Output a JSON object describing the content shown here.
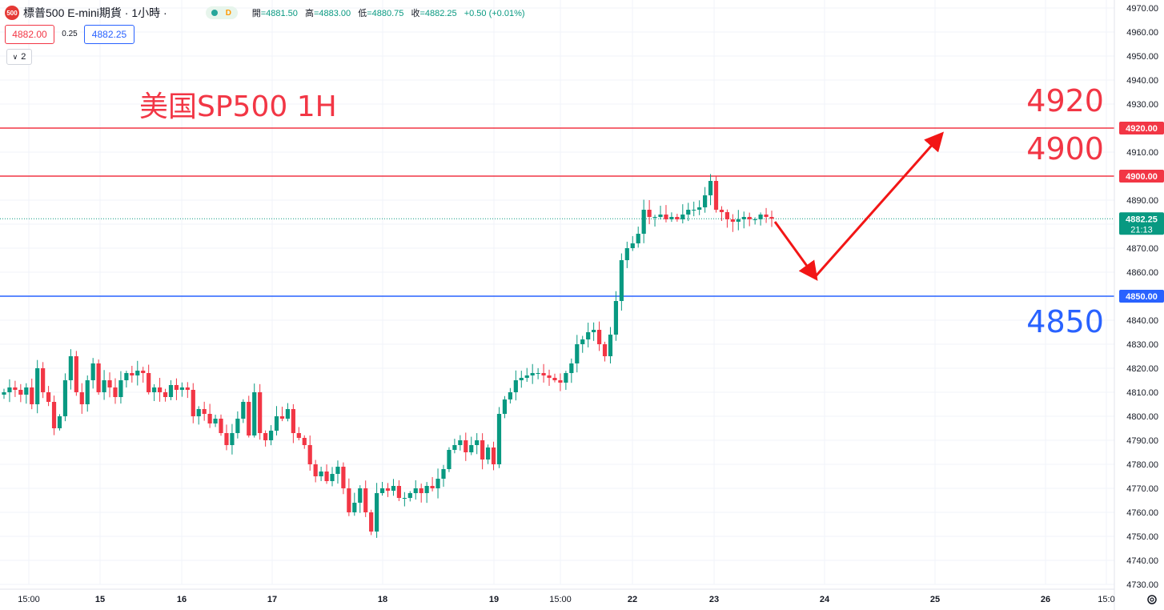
{
  "header": {
    "logo": "500",
    "title": "標普500 E-mini期貨 · 1小時 ·",
    "status_letter": "D",
    "ohlc": [
      {
        "label": "開",
        "value": "=4881.50"
      },
      {
        "label": "高",
        "value": "=4883.00"
      },
      {
        "label": "低",
        "value": "=4880.75"
      },
      {
        "label": "收",
        "value": "=4882.25"
      },
      {
        "label": "",
        "value": "+0.50 (+0.01%)"
      }
    ]
  },
  "trade": {
    "sell": "4882.00",
    "spread": "0.25",
    "buy": "4882.25"
  },
  "indicators": {
    "count": "2"
  },
  "annotations": {
    "title": "美国SP500 1H",
    "lvl1": "4920",
    "lvl2": "4900",
    "lvl3": "4850"
  },
  "colors": {
    "up": "#089981",
    "down": "#f23645",
    "red_line": "#f23645",
    "blue_line": "#2962ff",
    "grid": "#f0f3fa"
  },
  "chart_data": {
    "type": "candlestick",
    "symbol": "標普500 E-mini期貨",
    "interval": "1H",
    "ylim": [
      4730,
      4970
    ],
    "y_ticks": [
      "4970.00",
      "4960.00",
      "4950.00",
      "4940.00",
      "4930.00",
      "4920.00",
      "4910.00",
      "4900.00",
      "4890.00",
      "4880.00",
      "4870.00",
      "4860.00",
      "4850.00",
      "4840.00",
      "4830.00",
      "4820.00",
      "4810.00",
      "4800.00",
      "4790.00",
      "4780.00",
      "4770.00",
      "4760.00",
      "4750.00",
      "4740.00",
      "4730.00"
    ],
    "x_ticks": [
      "15:00",
      "15",
      "16",
      "17",
      "18",
      "19",
      "15:00",
      "22",
      "23",
      "24",
      "25",
      "26",
      "15:0"
    ],
    "last_price": "4882.25",
    "countdown": "21:13",
    "horizontal_lines": [
      {
        "value": 4920,
        "label": "4920.00",
        "color": "#f23645"
      },
      {
        "value": 4900,
        "label": "4900.00",
        "color": "#f23645"
      },
      {
        "value": 4850,
        "label": "4850.00",
        "color": "#2962ff"
      }
    ],
    "forecast_path": [
      {
        "time": "23 13:00",
        "price": 4881
      },
      {
        "time": "24 12:00",
        "price": 4858
      },
      {
        "time": "25 12:00",
        "price": 4917
      }
    ],
    "closes": [
      4810,
      4812,
      4811,
      4809,
      4812,
      4805,
      4820,
      4810,
      4806,
      4795,
      4800,
      4815,
      4825,
      4810,
      4805,
      4815,
      4822,
      4810,
      4815,
      4812,
      4808,
      4815,
      4818,
      4817,
      4819,
      4818,
      4810,
      4812,
      4810,
      4808,
      4813,
      4811,
      4812,
      4811,
      4800,
      4803,
      4801,
      4797,
      4799,
      4793,
      4788,
      4793,
      4799,
      4806,
      4792,
      4810,
      4793,
      4790,
      4794,
      4800,
      4799,
      4803,
      4793,
      4791,
      4788,
      4780,
      4775,
      4777,
      4773,
      4776,
      4779,
      4770,
      4760,
      4764,
      4770,
      4760,
      4752,
      4768,
      4770,
      4769,
      4771,
      4766,
      4766,
      4768,
      4770,
      4768,
      4771,
      4770,
      4774,
      4778,
      4786,
      4788,
      4790,
      4785,
      4788,
      4790,
      4782,
      4787,
      4780,
      4801,
      4807,
      4810,
      4815,
      4816,
      4817,
      4818,
      4818,
      4817,
      4816,
      4815,
      4814,
      4818,
      4822,
      4830,
      4832,
      4835,
      4836,
      4830,
      4825,
      4834,
      4848,
      4865,
      4870,
      4872,
      4876,
      4886,
      4883,
      4883,
      4884,
      4882,
      4883,
      4882,
      4884,
      4886,
      4886,
      4887,
      4892,
      4898,
      4886,
      4885,
      4882,
      4881,
      4882,
      4883,
      4882,
      4882,
      4884,
      4883,
      4882.25
    ]
  }
}
